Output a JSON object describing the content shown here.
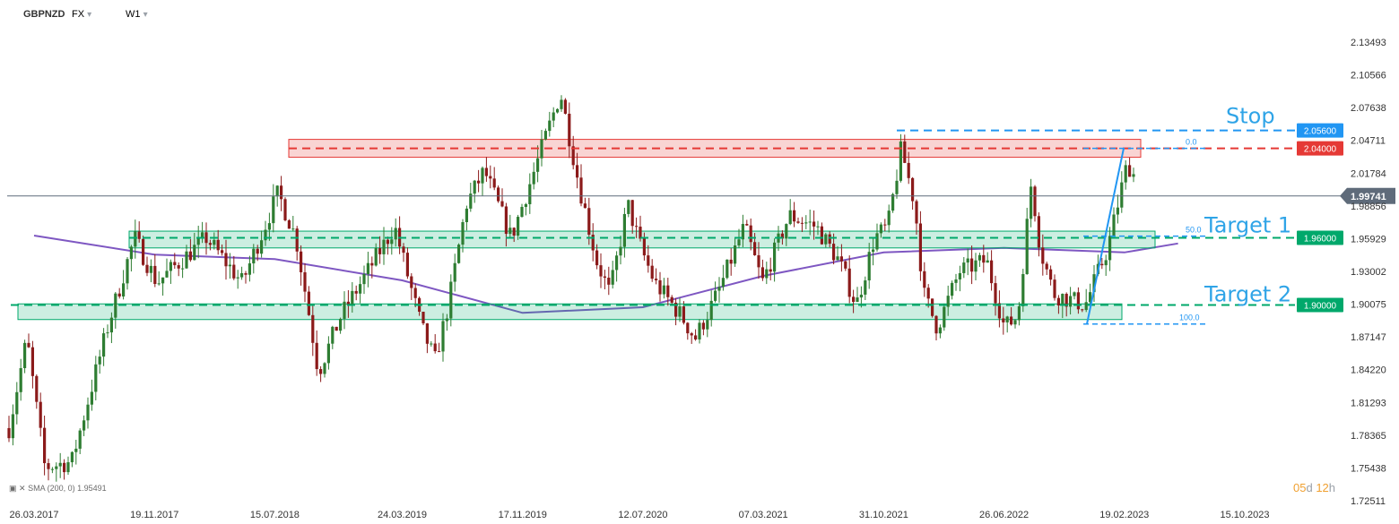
{
  "header": {
    "symbol": "GBPNZD",
    "market": "FX",
    "timeframe": "W1",
    "dropdown_icon": "caret-down-icon"
  },
  "colors": {
    "bull": "#26a69a",
    "bear": "#ef5350",
    "sma": "#7e57c2",
    "resistance": "#e53935",
    "support": "#00a86b",
    "stop": "#2196f3",
    "fib": "#2196f3",
    "label_text": "#2fa4e7",
    "current": "#5f6b7a"
  },
  "legend": {
    "sma_text": "SMA (200, 0) 1.95491"
  },
  "timer": {
    "days": "05",
    "d_unit": "d",
    "hours": "12",
    "h_unit": "h"
  },
  "chart_data": {
    "type": "candlestick",
    "y_ticks": [
      2.13493,
      2.10566,
      2.07638,
      2.04711,
      2.01784,
      1.98856,
      1.95929,
      1.93002,
      1.90075,
      1.87147,
      1.8422,
      1.81293,
      1.78365,
      1.75438,
      1.72511
    ],
    "y_tick_labels": [
      "2.13493",
      "2.10566",
      "2.07638",
      "2.04711",
      "2.01784",
      "1.98856",
      "1.95929",
      "1.93002",
      "1.90075",
      "1.87147",
      "1.84220",
      "1.81293",
      "1.78365",
      "1.75438",
      "1.72511"
    ],
    "ylim": [
      1.72,
      2.155
    ],
    "x_ticks": [
      "26.03.2017",
      "19.11.2017",
      "15.07.2018",
      "24.03.2019",
      "17.11.2019",
      "12.07.2020",
      "07.03.2021",
      "31.10.2021",
      "26.06.2022",
      "19.02.2023",
      "15.10.2023"
    ],
    "current_price": 1.99741,
    "current_price_label": "1.99741",
    "levels": [
      {
        "name": "stop",
        "value": 2.056,
        "label": "2.05600",
        "text": "Stop"
      },
      {
        "name": "resistance",
        "value": 2.04,
        "label": "2.04000"
      },
      {
        "name": "target-1",
        "value": 1.96,
        "label": "1.96000",
        "text": "Target 1"
      },
      {
        "name": "target-2",
        "value": 1.9,
        "label": "1.90000",
        "text": "Target 2"
      }
    ],
    "zones": [
      {
        "name": "resistance-zone",
        "low": 2.032,
        "high": 2.048
      },
      {
        "name": "target-1-zone",
        "low": 1.951,
        "high": 1.966
      },
      {
        "name": "target-2-zone",
        "low": 1.887,
        "high": 1.901
      }
    ],
    "fib": {
      "high": 2.04,
      "low": 1.883,
      "levels": [
        {
          "ratio": 0,
          "label": "0.0"
        },
        {
          "ratio": 0.5,
          "label": "50.0"
        },
        {
          "ratio": 1,
          "label": "100.0"
        }
      ]
    },
    "sma": {
      "name": "SMA (200, 0)",
      "x": [
        "26.03.2017",
        "19.11.2017",
        "15.07.2018",
        "24.03.2019",
        "17.11.2019",
        "12.07.2020",
        "07.03.2021",
        "31.10.2021",
        "26.06.2022",
        "19.02.2023",
        "05.06.2023"
      ],
      "values": [
        1.962,
        1.945,
        1.941,
        1.922,
        1.893,
        1.898,
        1.926,
        1.947,
        1.951,
        1.947,
        1.955
      ]
    }
  }
}
